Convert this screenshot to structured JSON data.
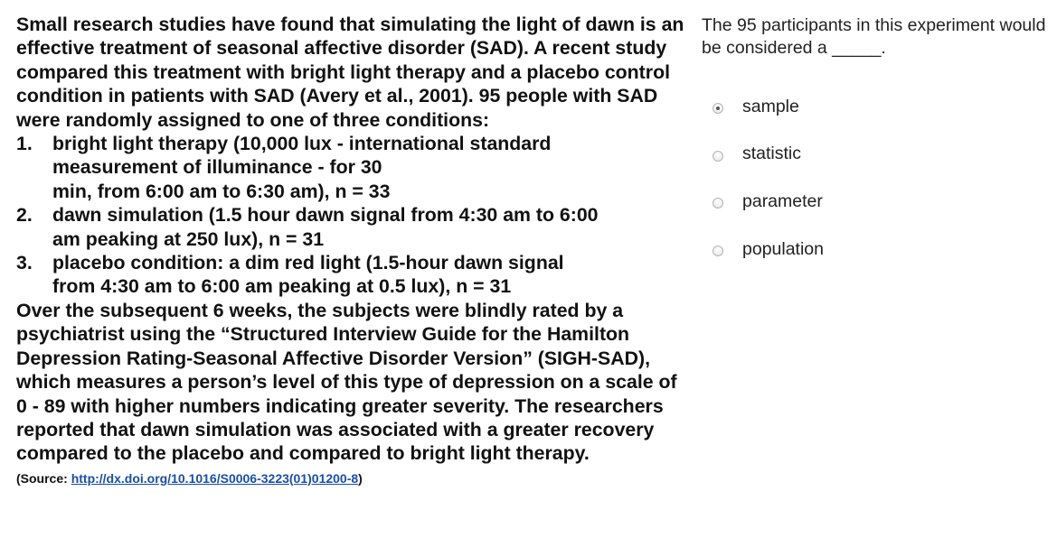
{
  "passage": {
    "intro": "Small research studies have found that simulating the light of dawn is an effective treatment of seasonal affective disorder (SAD). A recent study compared this treatment with bright light therapy and a placebo control condition in patients with SAD (Avery et al., 2001). 95 people with SAD were randomly assigned to one of three conditions:",
    "conditions": [
      {
        "number": "1.",
        "lines": [
          "bright light therapy (10,000 lux - international standard",
          "measurement of illuminance - for 30",
          "min, from 6:00 am to 6:30 am), n = 33"
        ]
      },
      {
        "number": "2.",
        "lines": [
          "dawn simulation (1.5 hour dawn signal from 4:30 am to 6:00",
          "am peaking at 250 lux), n = 31"
        ]
      },
      {
        "number": "3.",
        "lines": [
          "placebo condition: a dim red light (1.5-hour dawn signal",
          "from 4:30 am to 6:00 am peaking at 0.5 lux), n = 31"
        ]
      }
    ],
    "conclusion": "Over the subsequent 6 weeks, the subjects were blindly rated by a psychiatrist using the “Structured Interview Guide for the Hamilton Depression Rating-Seasonal Affective Disorder Version” (SIGH-SAD), which measures a person’s level of this type of depression on a scale of 0 - 89 with higher numbers indicating greater severity. The researchers reported that dawn simulation was associated with a greater recovery compared to the placebo and compared to bright light therapy.",
    "source_prefix": "(Source:",
    "source_link": "http://dx.doi.org/10.1016/S0006-3223(01)01200-8",
    "source_suffix": ")"
  },
  "question": {
    "text": "The 95 participants in this experiment would be considered a _____.",
    "options": [
      {
        "label": "sample",
        "checked": true
      },
      {
        "label": "statistic",
        "checked": false
      },
      {
        "label": "parameter",
        "checked": false
      },
      {
        "label": "population",
        "checked": false
      }
    ]
  },
  "colors": {
    "text": "#111111",
    "link": "#1a4fa3"
  }
}
